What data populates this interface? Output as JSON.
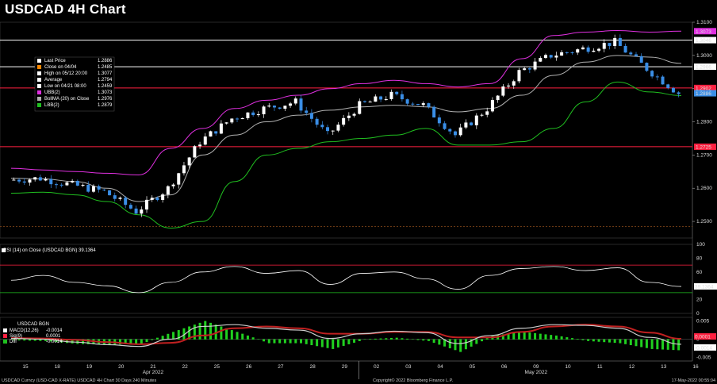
{
  "title": "USDCAD 4H Chart",
  "colors": {
    "bg": "#000000",
    "up": "#ffffff",
    "down": "#3a8ee6",
    "bbUpper": "#e030e0",
    "bbMid": "#b0b0b0",
    "bbLower": "#20c020",
    "hline": "#ff2040",
    "grid": "#8a4a1a"
  },
  "price_legend": [
    {
      "label": "Last Price",
      "value": "1.2886",
      "swatch": "#ffffff"
    },
    {
      "label": "Close on 04/04",
      "value": "1.2485",
      "swatch": "#ff8800"
    },
    {
      "label": "High on 05/12 20:00",
      "value": "1.3077",
      "swatch": "#ffffff"
    },
    {
      "label": "Average",
      "value": "1.2794",
      "swatch": "#ffffff"
    },
    {
      "label": "Low on 04/21 08:00",
      "value": "1.2459",
      "swatch": "#ffffff"
    },
    {
      "label": "UBB(2)",
      "value": "1.3073",
      "swatch": "#e030e0"
    },
    {
      "label": "BollMA (20)  on Close",
      "value": "1.2976",
      "swatch": "#b0b0b0"
    },
    {
      "label": "LBB(2)",
      "value": "1.2879",
      "swatch": "#20c020"
    }
  ],
  "price_axis": {
    "ticks": [
      "1.3100",
      "1.3000",
      "1.2900",
      "1.2800",
      "1.2700",
      "1.2600",
      "1.2500"
    ],
    "tags": [
      {
        "text": "1.3046",
        "bg": "#ffffff",
        "fg": "#000000"
      },
      {
        "text": "1.3073",
        "bg": "#e030e0",
        "fg": "#ffffff"
      },
      {
        "text": "1.2966",
        "bg": "#ffffff",
        "fg": "#000000"
      },
      {
        "text": "1.2902",
        "bg": "#ff2040",
        "fg": "#ffffff"
      },
      {
        "text": "1.2886",
        "bg": "#3a8ee6",
        "fg": "#ffffff"
      },
      {
        "text": "1.2725",
        "bg": "#ff2040",
        "fg": "#ffffff"
      }
    ]
  },
  "rsi": {
    "legend": "RSI (14)  on Close (USDCAD BGN)  39.1364",
    "ticks": [
      "100",
      "80",
      "60",
      "40",
      "20",
      "0"
    ],
    "tag": "39.1364"
  },
  "macd": {
    "legend_title": "USDCAD BGN",
    "rows": [
      {
        "label": "MACD(12,26)",
        "value": "-0.0014",
        "swatch": "#ffffff"
      },
      {
        "label": "Sig(9)",
        "value": "0.0001",
        "swatch": "#ff2040"
      },
      {
        "label": "Diff",
        "value": "-0.0014",
        "swatch": "#20c020"
      }
    ],
    "ticks": [
      "0.005",
      "0",
      "-0.005"
    ],
    "tags": [
      "0.0001",
      "-0.0014"
    ]
  },
  "x_axis": {
    "labels": [
      "15",
      "18",
      "19",
      "20",
      "21",
      "22",
      "25",
      "26",
      "27",
      "28",
      "29",
      "02",
      "03",
      "04",
      "05",
      "06",
      "09",
      "10",
      "11",
      "12",
      "13",
      "16"
    ],
    "months": [
      "Apr 2022",
      "May 2022"
    ]
  },
  "footer": {
    "left": "USDCAD Curncy (USD-CAD X-RATE)  USDCAD 4H Chart 30 Days 240 Minutes",
    "center": "Copyright© 2022 Bloomberg Finance L.P.",
    "right": "17-May-2022 00:55:04"
  },
  "chart_data": {
    "type": "line",
    "title": "USDCAD 4H Chart",
    "xlabel": "",
    "ylabel": "",
    "ylim": [
      1.245,
      1.31
    ],
    "grid": false,
    "x": [
      "15",
      "18",
      "19",
      "20",
      "21",
      "22",
      "25",
      "26",
      "27",
      "28",
      "29",
      "02",
      "03",
      "04",
      "05",
      "06",
      "09",
      "10",
      "11",
      "12",
      "13",
      "16"
    ],
    "candles_close": [
      1.2625,
      1.263,
      1.261,
      1.259,
      1.253,
      1.26,
      1.274,
      1.281,
      1.284,
      1.286,
      1.276,
      1.285,
      1.288,
      1.285,
      1.276,
      1.284,
      1.295,
      1.3,
      1.302,
      1.304,
      1.296,
      1.2886
    ],
    "series": [
      {
        "name": "UBB(2)",
        "values": [
          1.266,
          1.2655,
          1.265,
          1.2645,
          1.264,
          1.272,
          1.278,
          1.284,
          1.2865,
          1.288,
          1.29,
          1.2915,
          1.2925,
          1.2915,
          1.2905,
          1.2915,
          1.299,
          1.306,
          1.307,
          1.3075,
          1.307,
          1.3073
        ]
      },
      {
        "name": "BollMA (20)  on Close",
        "values": [
          1.263,
          1.2628,
          1.262,
          1.26,
          1.256,
          1.258,
          1.27,
          1.276,
          1.28,
          1.282,
          1.2835,
          1.2845,
          1.285,
          1.2845,
          1.283,
          1.284,
          1.288,
          1.294,
          1.298,
          1.3,
          1.2995,
          1.2976
        ]
      },
      {
        "name": "LBB(2)",
        "values": [
          1.2585,
          1.2588,
          1.258,
          1.256,
          1.252,
          1.248,
          1.25,
          1.262,
          1.27,
          1.272,
          1.274,
          1.275,
          1.276,
          1.278,
          1.273,
          1.273,
          1.274,
          1.278,
          1.286,
          1.292,
          1.289,
          1.2879
        ]
      }
    ],
    "hlines": [
      1.3046,
      1.2966,
      1.2902,
      1.2725
    ],
    "rsi": [
      48,
      55,
      45,
      40,
      30,
      45,
      60,
      68,
      58,
      62,
      42,
      58,
      60,
      50,
      35,
      55,
      65,
      68,
      62,
      66,
      45,
      39
    ],
    "macd": [
      0.0002,
      0.0,
      -0.0008,
      -0.0015,
      -0.002,
      0.0,
      0.0035,
      0.004,
      0.003,
      0.0025,
      0.0002,
      0.0015,
      0.0022,
      0.0018,
      -0.0012,
      0.001,
      0.003,
      0.004,
      0.0038,
      0.003,
      0.0005,
      -0.0014
    ],
    "signal": [
      0.0003,
      0.0002,
      -0.0002,
      -0.0008,
      -0.0014,
      -0.001,
      0.001,
      0.003,
      0.0035,
      0.003,
      0.0015,
      0.0015,
      0.002,
      0.002,
      0.0005,
      0.0005,
      0.002,
      0.0035,
      0.004,
      0.0035,
      0.0018,
      0.0001
    ]
  }
}
